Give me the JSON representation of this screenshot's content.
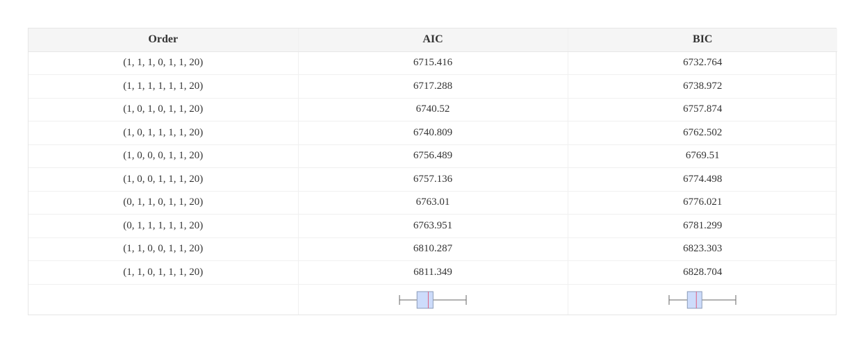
{
  "table": {
    "columns": [
      "Order",
      "AIC",
      "BIC"
    ],
    "rows": [
      {
        "order": "(1, 1, 1, 0, 1, 1, 20)",
        "aic": "6715.416",
        "bic": "6732.764"
      },
      {
        "order": "(1, 1, 1, 1, 1, 1, 20)",
        "aic": "6717.288",
        "bic": "6738.972"
      },
      {
        "order": "(1, 0, 1, 0, 1, 1, 20)",
        "aic": "6740.52",
        "bic": "6757.874"
      },
      {
        "order": "(1, 0, 1, 1, 1, 1, 20)",
        "aic": "6740.809",
        "bic": "6762.502"
      },
      {
        "order": "(1, 0, 0, 0, 1, 1, 20)",
        "aic": "6756.489",
        "bic": "6769.51"
      },
      {
        "order": "(1, 0, 0, 1, 1, 1, 20)",
        "aic": "6757.136",
        "bic": "6774.498"
      },
      {
        "order": "(0, 1, 1, 0, 1, 1, 20)",
        "aic": "6763.01",
        "bic": "6776.021"
      },
      {
        "order": "(0, 1, 1, 1, 1, 1, 20)",
        "aic": "6763.951",
        "bic": "6781.299"
      },
      {
        "order": "(1, 1, 0, 0, 1, 1, 20)",
        "aic": "6810.287",
        "bic": "6823.303"
      },
      {
        "order": "(1, 1, 0, 1, 1, 1, 20)",
        "aic": "6811.349",
        "bic": "6828.704"
      }
    ]
  },
  "colors": {
    "box_fill": "#cddcfb",
    "box_stroke": "#8a9bb8",
    "median": "#e0607e",
    "whisker": "#666666"
  }
}
